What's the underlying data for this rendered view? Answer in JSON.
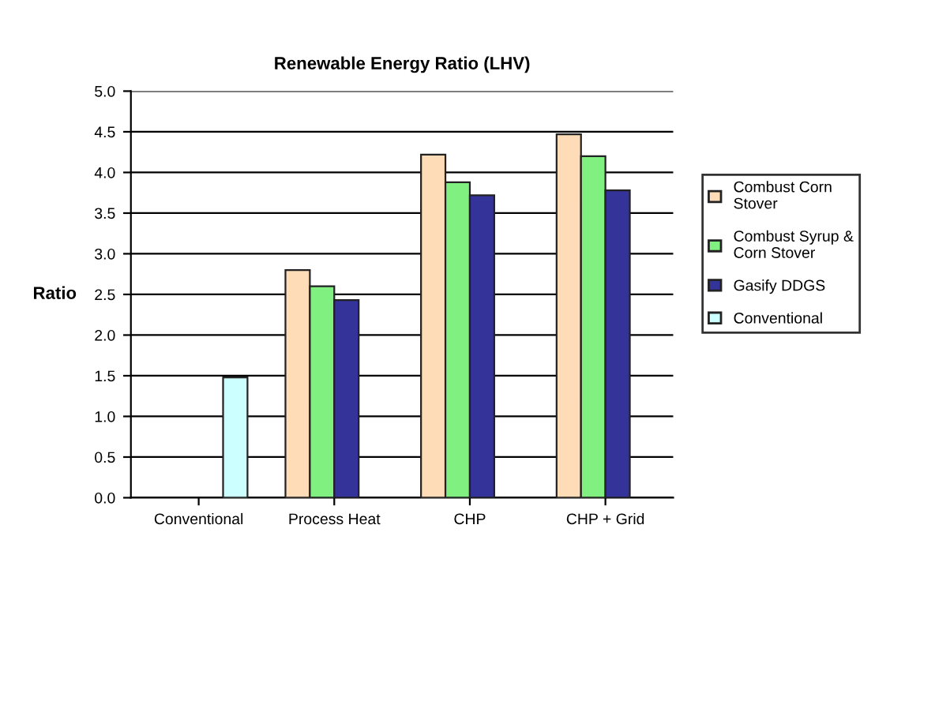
{
  "chart_data": {
    "type": "bar",
    "title": "Renewable Energy Ratio (LHV)",
    "ylabel": "Ratio",
    "categories": [
      "Conventional",
      "Process Heat",
      "CHP",
      "CHP + Grid"
    ],
    "series": [
      {
        "name": "Combust Corn Stover",
        "color": "#ffdcb8",
        "values": [
          null,
          2.8,
          4.22,
          4.47
        ]
      },
      {
        "name": "Combust Syrup & Corn Stover",
        "color": "#80f080",
        "values": [
          null,
          2.6,
          3.88,
          4.2
        ]
      },
      {
        "name": "Gasify DDGS",
        "color": "#333399",
        "values": [
          null,
          2.43,
          3.72,
          3.78
        ]
      },
      {
        "name": "Conventional",
        "color": "#ccffff",
        "values": [
          1.48,
          null,
          null,
          null
        ]
      }
    ],
    "ylim": [
      0,
      5
    ],
    "yticks": [
      {
        "value": 0,
        "label": "0.0"
      },
      0.5,
      {
        "value": 1,
        "label": "1.0"
      },
      1.5,
      {
        "value": 2,
        "label": "2.0"
      },
      2.5,
      {
        "value": 3,
        "label": "3.0"
      },
      3.5,
      {
        "value": 4,
        "label": "4.0"
      },
      4.5,
      {
        "value": 5,
        "label": "5.0"
      }
    ],
    "grid": "y",
    "legend": "right"
  }
}
